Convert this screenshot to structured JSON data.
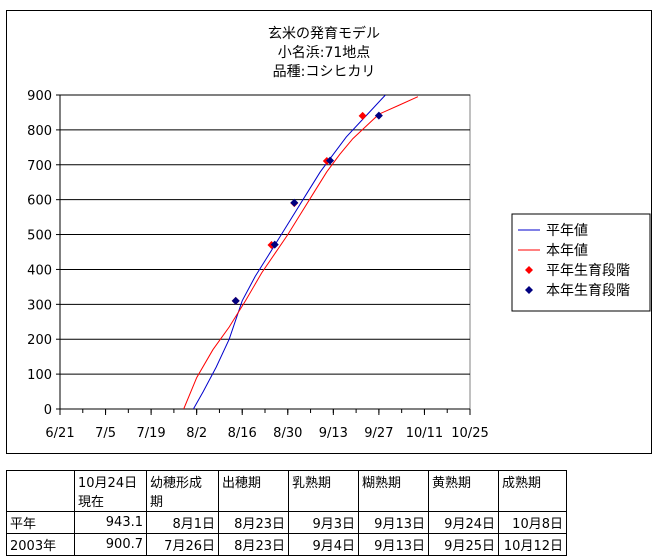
{
  "chart_data": {
    "type": "line",
    "title_lines": [
      "玄米の発育モデル",
      "小名浜:71地点",
      "品種:コシヒカリ"
    ],
    "x_tick_labels": [
      "6/21",
      "7/5",
      "7/19",
      "8/2",
      "8/16",
      "8/30",
      "9/13",
      "9/27",
      "10/11",
      "10/25"
    ],
    "x_ticks_doy": [
      172,
      186,
      200,
      214,
      228,
      242,
      256,
      270,
      284,
      298
    ],
    "y_ticks": [
      "0",
      "100",
      "200",
      "300",
      "400",
      "500",
      "600",
      "700",
      "800",
      "900"
    ],
    "xlim_doy": [
      172,
      298
    ],
    "ylim": [
      0,
      900
    ],
    "grid": "horizontal",
    "legend_position": "right",
    "series": [
      {
        "name": "平年値",
        "kind": "line",
        "color": "#0000cc",
        "points": [
          [
            213,
            0
          ],
          [
            216,
            50
          ],
          [
            220,
            120
          ],
          [
            224,
            200
          ],
          [
            228,
            310
          ],
          [
            232,
            380
          ],
          [
            236,
            440
          ],
          [
            240,
            500
          ],
          [
            244,
            560
          ],
          [
            248,
            620
          ],
          [
            252,
            680
          ],
          [
            256,
            730
          ],
          [
            260,
            780
          ],
          [
            264,
            820
          ],
          [
            268,
            860
          ],
          [
            272,
            900
          ]
        ]
      },
      {
        "name": "本年値",
        "kind": "line",
        "color": "#ff0000",
        "points": [
          [
            210,
            0
          ],
          [
            214,
            90
          ],
          [
            219,
            170
          ],
          [
            224,
            235
          ],
          [
            229,
            310
          ],
          [
            234,
            390
          ],
          [
            238,
            445
          ],
          [
            242,
            500
          ],
          [
            246,
            560
          ],
          [
            250,
            620
          ],
          [
            254,
            680
          ],
          [
            258,
            730
          ],
          [
            262,
            775
          ],
          [
            266,
            810
          ],
          [
            270,
            845
          ],
          [
            276,
            870
          ],
          [
            282,
            895
          ]
        ]
      },
      {
        "name": "平年生育段階",
        "kind": "marker",
        "color": "#ff0000",
        "points": [
          [
            226,
            310
          ],
          [
            237,
            470
          ],
          [
            244,
            590
          ],
          [
            254,
            711
          ],
          [
            265,
            840
          ]
        ]
      },
      {
        "name": "本年生育段階",
        "kind": "marker",
        "color": "#000080",
        "points": [
          [
            226,
            310
          ],
          [
            238,
            471
          ],
          [
            244,
            591
          ],
          [
            255,
            712
          ],
          [
            270,
            841
          ]
        ]
      }
    ]
  },
  "table": {
    "headers": [
      [
        "",
        ""
      ],
      [
        "10月24日",
        "現在"
      ],
      [
        "幼穂形成",
        "期"
      ],
      [
        "出穂期",
        ""
      ],
      [
        "乳熟期",
        ""
      ],
      [
        "糊熟期",
        ""
      ],
      [
        "黄熟期",
        ""
      ],
      [
        "成熟期",
        ""
      ]
    ],
    "rows": [
      {
        "label": "平年",
        "cells": [
          "943.1",
          "8月1日",
          "8月23日",
          "9月3日",
          "9月13日",
          "9月24日",
          "10月8日"
        ]
      },
      {
        "label": "2003年",
        "cells": [
          "900.7",
          "7月26日",
          "8月23日",
          "9月4日",
          "9月13日",
          "9月25日",
          "10月12日"
        ]
      }
    ]
  }
}
